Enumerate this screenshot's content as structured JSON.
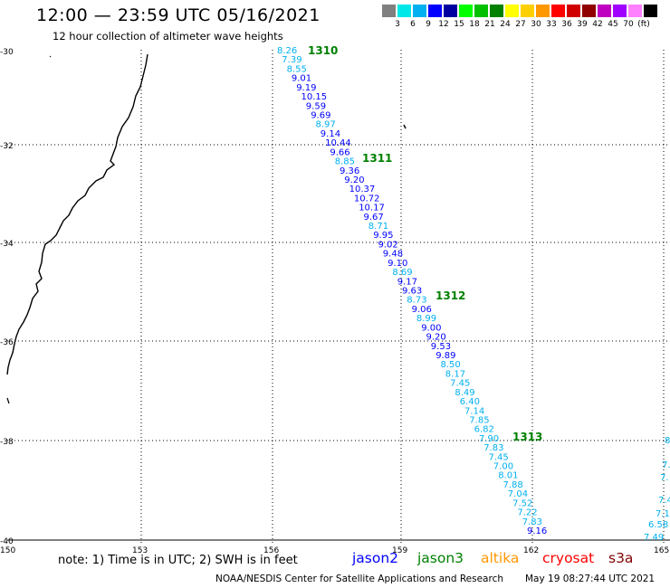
{
  "title": "12:00 — 23:59 UTC 05/16/2021",
  "subtitle": "12 hour collection of altimeter wave heights",
  "scale": {
    "colors": [
      "#808080",
      "#00e8e8",
      "#00b0f0",
      "#0000ff",
      "#0000a0",
      "#00ff00",
      "#00c000",
      "#008000",
      "#ffff00",
      "#ffd000",
      "#ff9800",
      "#ff0000",
      "#d00000",
      "#900000",
      "#c000c0",
      "#a000ff",
      "#ff80ff",
      "#000000"
    ],
    "labels": [
      "3",
      "6",
      "9",
      "12",
      "15",
      "18",
      "21",
      "24",
      "27",
      "30",
      "33",
      "36",
      "39",
      "42",
      "45",
      "70",
      "(ft)"
    ]
  },
  "latitude_labels": [
    "-30",
    "-32",
    "-34",
    "-36",
    "-38",
    "-40"
  ],
  "longitude_labels": [
    "150",
    "153",
    "156",
    "159",
    "162",
    "165"
  ],
  "passes": [
    {
      "label": "1310",
      "color": "#008000"
    },
    {
      "label": "1311",
      "color": "#008000"
    },
    {
      "label": "1312",
      "color": "#008000"
    },
    {
      "label": "1313",
      "color": "#008000"
    }
  ],
  "track_main": [
    "8.26",
    "7.39",
    "8.55",
    "9.01",
    "9.19",
    "10.15",
    "9.59",
    "9.69",
    "8.97",
    "9.14",
    "10.44",
    "9.66",
    "8.85",
    "9.36",
    "9.20",
    "10.37",
    "10.72",
    "10.17",
    "9.67",
    "8.71",
    "9.95",
    "9.02",
    "9.48",
    "9.10",
    "8.69",
    "9.17",
    "9.63",
    "8.73",
    "9.06",
    "8.99",
    "9.00",
    "9.20",
    "9.53",
    "9.89",
    "8.50",
    "8.17",
    "7.45",
    "8.49",
    "6.40",
    "7.14",
    "7.85",
    "6.82",
    "7.90",
    "7.83",
    "7.45",
    "7.00",
    "8.01",
    "7.88",
    "7.04",
    "7.52",
    "7.22",
    "7.83",
    "9.16"
  ],
  "track_east": [
    "8",
    "7.",
    "7.",
    "7.4",
    "7.1",
    "6.58",
    "7.49"
  ],
  "satellites": [
    {
      "name": "jason2",
      "color": "#0000ff"
    },
    {
      "name": "jason3",
      "color": "#008000"
    },
    {
      "name": "altika",
      "color": "#ff9800"
    },
    {
      "name": "cryosat",
      "color": "#ff0000"
    },
    {
      "name": "s3a",
      "color": "#800000"
    }
  ],
  "note": "note: 1) Time is in UTC; 2) SWH is in feet",
  "credit": "NOAA/NESDIS Center for Satellite Applications and Research",
  "timestamp": "May 19 08:27:44 UTC 2021"
}
